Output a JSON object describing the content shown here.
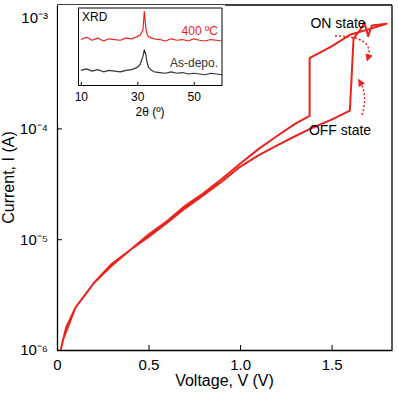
{
  "chart_data": [
    {
      "type": "line",
      "x_label": "Voltage, V (V)",
      "y_label": "Current, I (A)",
      "annotations": [
        "ON state",
        "OFF state"
      ],
      "x": [
        0.02,
        0.05,
        0.1,
        0.2,
        0.3,
        0.4,
        0.5,
        0.6,
        0.7,
        0.8,
        0.9,
        1.0,
        1.1,
        1.2,
        1.3,
        1.4,
        1.5,
        1.6,
        1.62,
        1.65,
        1.68,
        1.7,
        1.72,
        1.8,
        1.72,
        1.6,
        1.5,
        1.4,
        1.38,
        1.38,
        1.3,
        1.2,
        1.1,
        1.0,
        0.9,
        0.8,
        0.7,
        0.6,
        0.5,
        0.4,
        0.3,
        0.2,
        0.1,
        0.03
      ],
      "series": [
        {
          "color": "#e8241d",
          "values": [
            1e-06,
            1.6e-06,
            2.4e-06,
            4e-06,
            5.8e-06,
            8e-06,
            1.05e-05,
            1.4e-05,
            1.9e-05,
            2.5e-05,
            3.3e-05,
            4.5e-05,
            5.7e-05,
            7e-05,
            8.5e-05,
            0.000102,
            0.00012,
            0.000145,
            0.00065,
            0.00075,
            0.0009,
            0.00068,
            0.00085,
            0.00088,
            0.0008,
            0.0007,
            0.00055,
            0.00045,
            0.00043,
            0.00013,
            0.00011,
            8.5e-05,
            6.5e-05,
            4.8e-05,
            3.5e-05,
            2.6e-05,
            2e-05,
            1.45e-05,
            1.1e-05,
            8e-06,
            6e-06,
            4e-06,
            2.4e-06,
            1.2e-06
          ]
        }
      ],
      "xlim": [
        0,
        1.83
      ],
      "xticks": [
        0,
        0.5,
        {
          "value": 1,
          "label": "1.0"
        },
        1.5
      ],
      "ylim": [
        1e-06,
        0.0013
      ],
      "yticks": [
        {
          "value": 1e-06,
          "label": "10⁻⁶"
        },
        {
          "value": 1e-05,
          "label": "10⁻⁵"
        },
        {
          "value": 0.0001,
          "label": "10⁻⁴"
        },
        {
          "value": 0.001,
          "label": "10⁻³"
        }
      ],
      "log": "y"
    },
    {
      "type": "line",
      "title": "XRD",
      "x_label": "2θ (º)",
      "x": [
        10,
        12,
        14,
        16,
        18,
        20,
        22,
        24,
        26,
        28,
        30,
        31,
        32,
        32.5,
        33,
        33.5,
        34,
        35,
        36,
        38,
        40,
        42,
        44,
        46,
        48,
        50,
        52,
        54,
        56,
        58,
        60
      ],
      "series": [
        {
          "name": "400 ºC",
          "color": "#e8241d",
          "values": [
            6.2,
            6.5,
            6.1,
            6.4,
            6.0,
            6.3,
            6.2,
            6.1,
            6.4,
            6.3,
            6.6,
            6.8,
            7.5,
            10,
            7.8,
            6.9,
            6.6,
            6.4,
            6.3,
            6.2,
            6.0,
            6.3,
            6.1,
            6.2,
            6.0,
            6.3,
            6.1,
            6.0,
            6.2,
            6.1,
            6.0
          ]
        },
        {
          "name": "As-depo.",
          "color": "#333333",
          "values": [
            2.0,
            2.2,
            1.9,
            2.1,
            1.8,
            2.0,
            1.9,
            1.8,
            2.0,
            2.1,
            2.4,
            2.8,
            3.9,
            4.8,
            4.2,
            3.0,
            2.4,
            2.0,
            1.8,
            1.7,
            1.6,
            1.8,
            1.6,
            1.7,
            1.5,
            1.6,
            1.5,
            1.4,
            1.6,
            1.5,
            1.4
          ]
        }
      ],
      "xlim": [
        9,
        60
      ],
      "xticks": [
        10,
        30,
        50
      ],
      "ylim": [
        0,
        10.5
      ],
      "yticks": [],
      "tick_labels": "x"
    }
  ]
}
